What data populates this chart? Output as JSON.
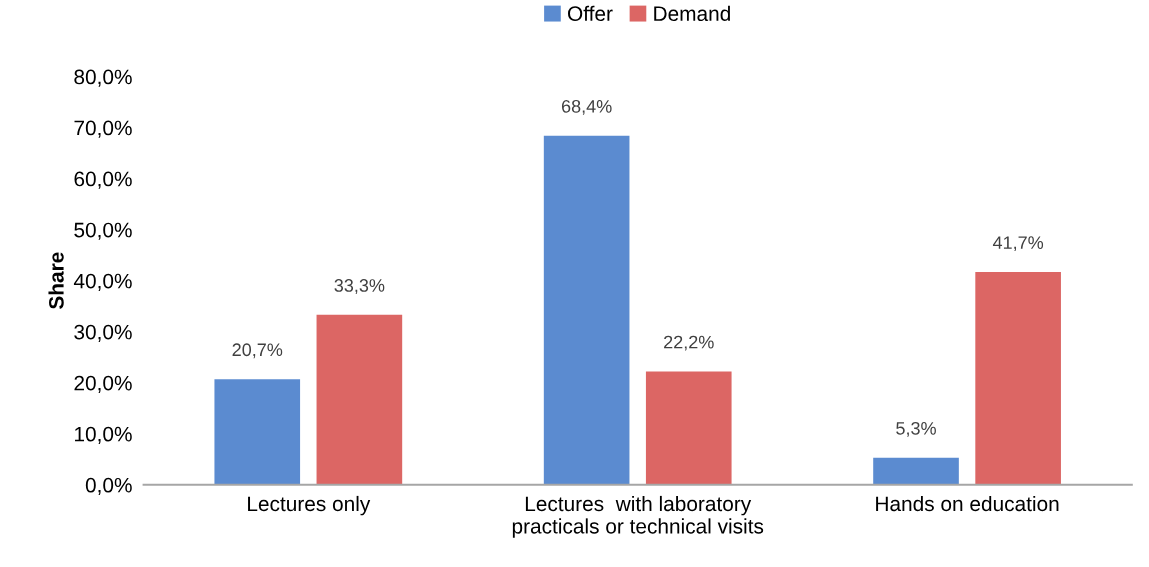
{
  "chart_data": {
    "type": "bar",
    "ylabel": "Share",
    "categories": [
      "Lectures only",
      "Lectures  with laboratory\npracticals or technical visits",
      "Hands on education"
    ],
    "series": [
      {
        "name": "Offer",
        "color": "#5b8bd0",
        "values": [
          20.7,
          68.4,
          5.3
        ],
        "value_labels": [
          "20,7%",
          "68,4%",
          "5,3%"
        ]
      },
      {
        "name": "Demand",
        "color": "#dc6664",
        "values": [
          33.3,
          22.2,
          41.7
        ],
        "value_labels": [
          "33,3%",
          "22,2%",
          "41,7%"
        ]
      }
    ],
    "ylim": [
      0,
      80
    ],
    "yticks": [
      {
        "value": 0,
        "label": "0,0%"
      },
      {
        "value": 10,
        "label": "10,0%"
      },
      {
        "value": 20,
        "label": "20,0%"
      },
      {
        "value": 30,
        "label": "30,0%"
      },
      {
        "value": 40,
        "label": "40,0%"
      },
      {
        "value": 50,
        "label": "50,0%"
      },
      {
        "value": 60,
        "label": "60,0%"
      },
      {
        "value": 70,
        "label": "70,0%"
      },
      {
        "value": 80,
        "label": "80,0%"
      }
    ],
    "grid": false,
    "legend": "top"
  }
}
